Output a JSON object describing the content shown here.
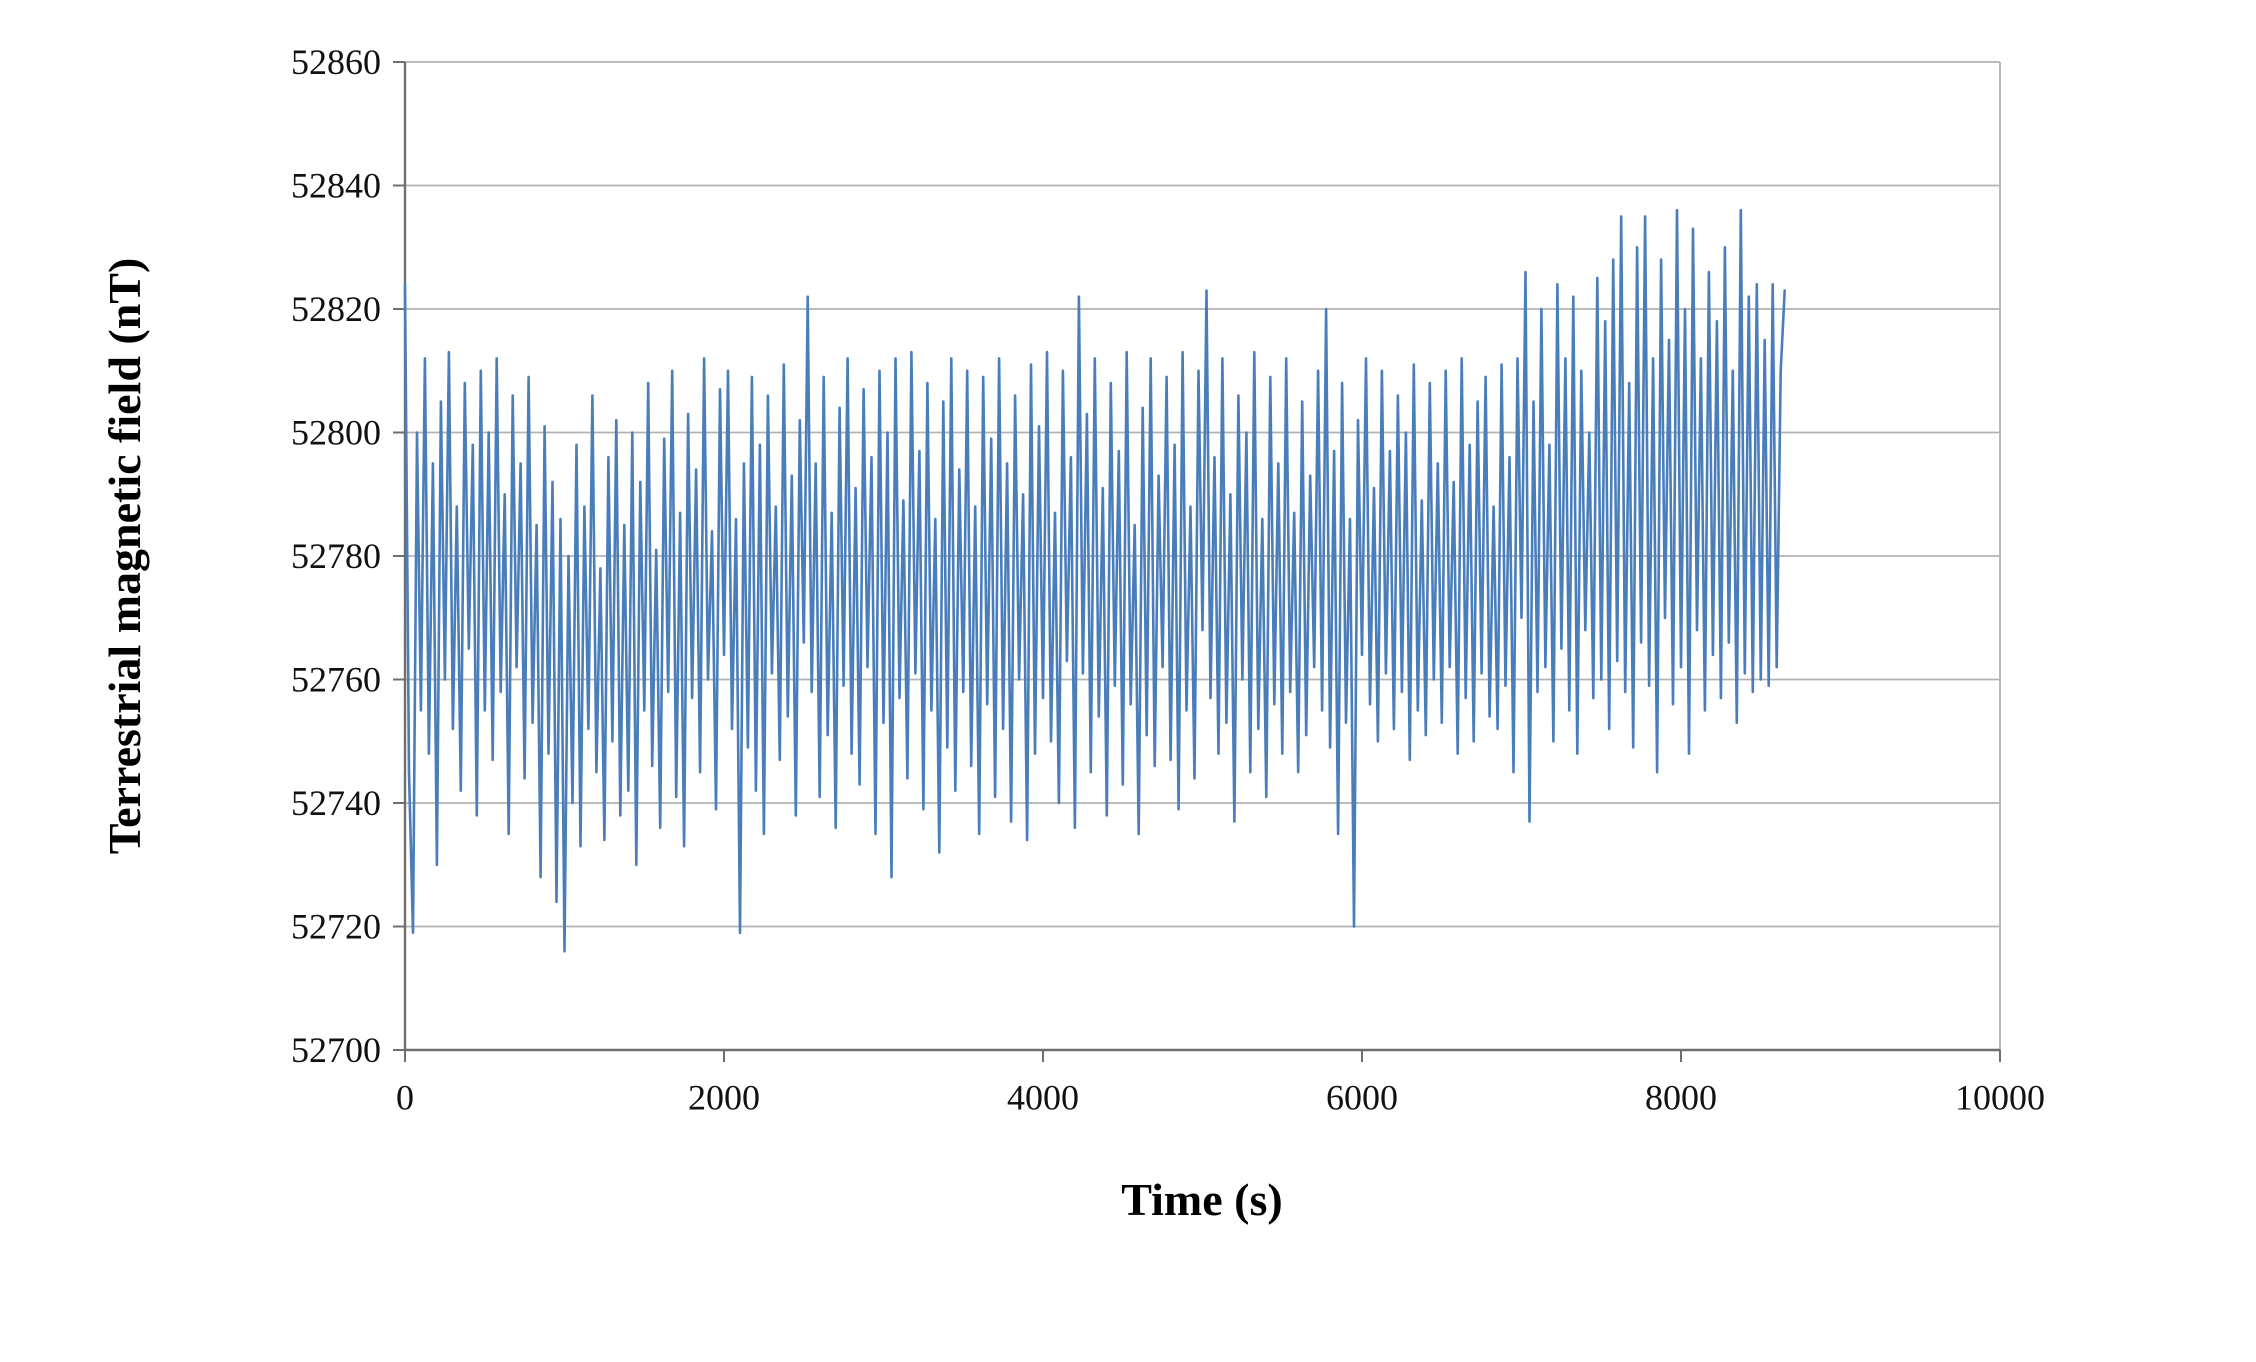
{
  "chart_data": {
    "type": "line",
    "title": "",
    "xlabel": "Time (s)",
    "ylabel": "Terrestrial magnetic field (nT)",
    "xlim": [
      0,
      10000
    ],
    "ylim": [
      52700,
      52860
    ],
    "x_ticks": [
      0,
      2000,
      4000,
      6000,
      8000,
      10000
    ],
    "y_ticks": [
      52700,
      52720,
      52740,
      52760,
      52780,
      52800,
      52820,
      52840,
      52860
    ],
    "grid": "horizontal",
    "legend_position": "none",
    "line_color": "#4a7ebb",
    "series": [
      {
        "name": "Terrestrial magnetic field",
        "x_start": 0,
        "x_step": 25,
        "y_values": [
          52824,
          52745,
          52719,
          52800,
          52755,
          52812,
          52748,
          52795,
          52730,
          52805,
          52760,
          52813,
          52752,
          52788,
          52742,
          52808,
          52765,
          52798,
          52738,
          52810,
          52755,
          52800,
          52747,
          52812,
          52758,
          52790,
          52735,
          52806,
          52762,
          52795,
          52744,
          52809,
          52753,
          52785,
          52728,
          52801,
          52748,
          52792,
          52724,
          52786,
          52716,
          52780,
          52740,
          52798,
          52733,
          52788,
          52752,
          52806,
          52745,
          52778,
          52734,
          52796,
          52750,
          52802,
          52738,
          52785,
          52742,
          52800,
          52730,
          52792,
          52755,
          52808,
          52746,
          52781,
          52736,
          52799,
          52758,
          52810,
          52741,
          52787,
          52733,
          52803,
          52757,
          52794,
          52745,
          52812,
          52760,
          52784,
          52739,
          52807,
          52764,
          52810,
          52752,
          52786,
          52719,
          52795,
          52749,
          52809,
          52742,
          52798,
          52735,
          52806,
          52761,
          52788,
          52747,
          52811,
          52754,
          52793,
          52738,
          52802,
          52766,
          52822,
          52758,
          52795,
          52741,
          52809,
          52751,
          52787,
          52736,
          52804,
          52759,
          52812,
          52748,
          52791,
          52743,
          52807,
          52762,
          52796,
          52735,
          52810,
          52753,
          52800,
          52728,
          52812,
          52757,
          52789,
          52744,
          52813,
          52761,
          52797,
          52739,
          52808,
          52755,
          52786,
          52732,
          52805,
          52749,
          52812,
          52742,
          52794,
          52758,
          52810,
          52746,
          52788,
          52735,
          52809,
          52756,
          52799,
          52741,
          52812,
          52752,
          52795,
          52737,
          52806,
          52760,
          52790,
          52734,
          52811,
          52748,
          52801,
          52757,
          52813,
          52750,
          52787,
          52740,
          52810,
          52763,
          52796,
          52736,
          52822,
          52761,
          52803,
          52745,
          52812,
          52754,
          52791,
          52738,
          52808,
          52759,
          52797,
          52743,
          52813,
          52756,
          52785,
          52735,
          52804,
          52751,
          52812,
          52746,
          52793,
          52762,
          52809,
          52747,
          52798,
          52739,
          52813,
          52755,
          52788,
          52744,
          52810,
          52768,
          52823,
          52757,
          52796,
          52748,
          52812,
          52753,
          52790,
          52737,
          52806,
          52760,
          52800,
          52745,
          52813,
          52752,
          52786,
          52741,
          52809,
          52756,
          52795,
          52748,
          52812,
          52758,
          52787,
          52745,
          52805,
          52751,
          52793,
          52762,
          52810,
          52755,
          52820,
          52749,
          52797,
          52735,
          52808,
          52753,
          52786,
          52720,
          52802,
          52764,
          52812,
          52756,
          52791,
          52750,
          52810,
          52761,
          52797,
          52752,
          52806,
          52758,
          52800,
          52747,
          52811,
          52755,
          52789,
          52751,
          52808,
          52760,
          52795,
          52753,
          52810,
          52762,
          52792,
          52748,
          52812,
          52757,
          52798,
          52750,
          52805,
          52761,
          52809,
          52754,
          52788,
          52752,
          52811,
          52759,
          52796,
          52745,
          52812,
          52770,
          52826,
          52737,
          52805,
          52758,
          52820,
          52762,
          52798,
          52750,
          52824,
          52765,
          52812,
          52755,
          52822,
          52748,
          52810,
          52768,
          52800,
          52757,
          52825,
          52760,
          52818,
          52752,
          52828,
          52763,
          52835,
          52758,
          52808,
          52749,
          52830,
          52766,
          52835,
          52759,
          52812,
          52745,
          52828,
          52770,
          52815,
          52756,
          52836,
          52762,
          52820,
          52748,
          52833,
          52768,
          52812,
          52755,
          52826,
          52764,
          52818,
          52757,
          52830,
          52766,
          52810,
          52753,
          52836,
          52761,
          52822,
          52758,
          52824,
          52760,
          52815,
          52759,
          52824,
          52762,
          52810,
          52823
        ]
      }
    ]
  }
}
